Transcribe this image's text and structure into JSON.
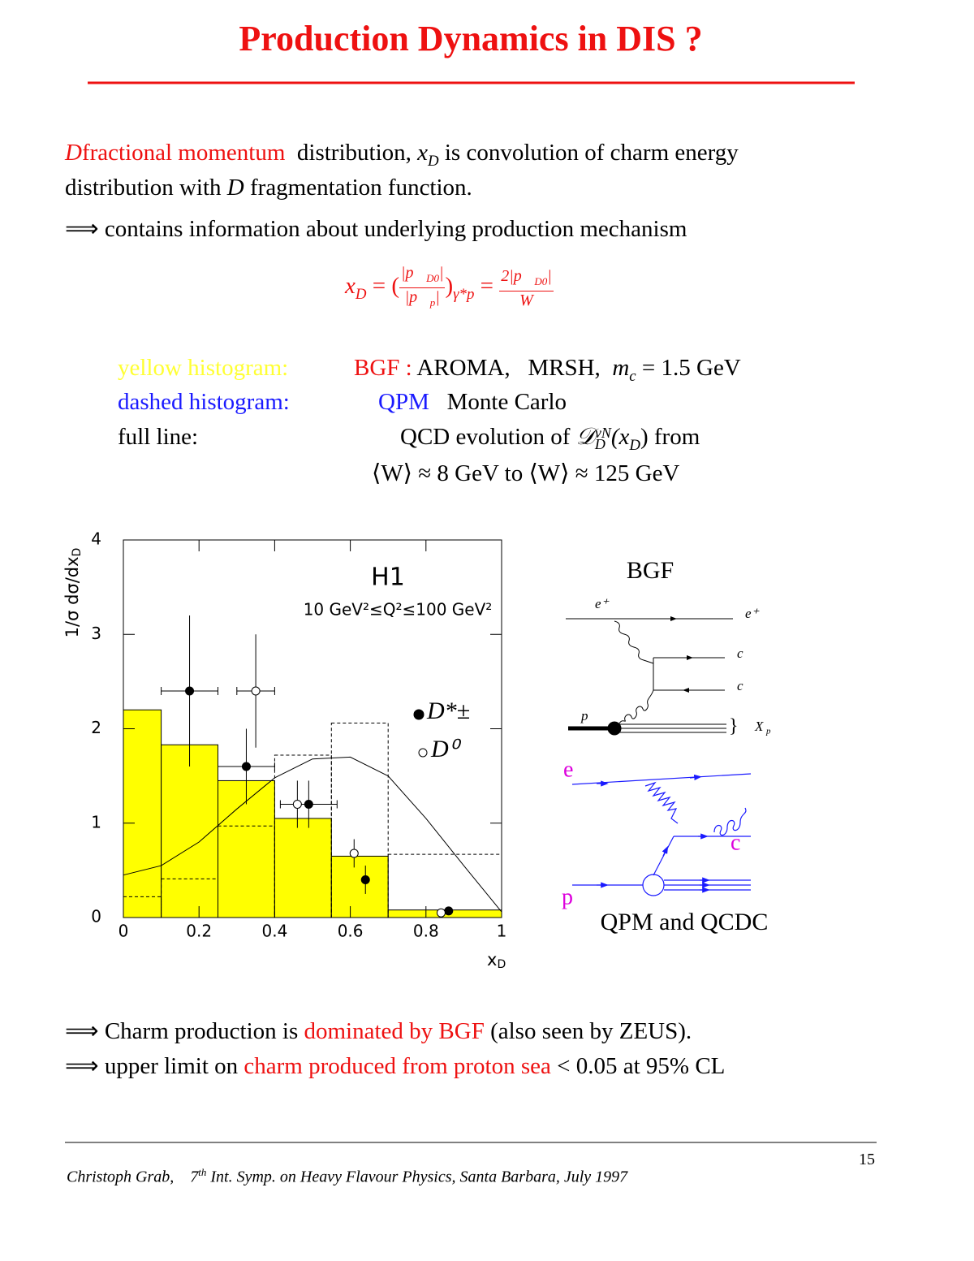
{
  "title": "Production Dynamics in DIS ?",
  "intro": [
    [
      "D",
      "fractional momentum",
      "distribution,",
      "x",
      "D",
      "is convolution of charm energy"
    ],
    [
      "distribution with",
      "D",
      "fragmentation function."
    ],
    [
      "⟹",
      "contains information about underlying production mechanism"
    ]
  ],
  "formula": [
    "x",
    "D",
    "= (",
    "|p⃗",
    "D0",
    "|",
    "|p⃗",
    "p",
    "|",
    ")",
    "γ*p",
    "=",
    "2|p⃗",
    "D0",
    "|",
    "W"
  ],
  "legend": [
    [
      "yellow histogram:",
      "BGF :",
      "AROMA,",
      "MRSH,",
      "m",
      "c",
      "= 1.5 GeV"
    ],
    [
      "dashed histogram:",
      "QPM",
      "Monte Carlo"
    ],
    [
      "full line:",
      "QCD evolution of",
      "𝒟",
      "νN",
      "D",
      "(x",
      "D",
      ") from"
    ],
    [
      "⟨W⟩ ≈ 8 GeV to ⟨W⟩ ≈ 125 GeV"
    ]
  ],
  "chart_data": {
    "type": "histogram",
    "ylabel": "1/σ dσ/dx",
    "ylabel_sub": "D",
    "xlabel": "x",
    "xlabel_sub": "D",
    "annotations": [
      "H1",
      "10 GeV²≤Q²≤100 GeV²"
    ],
    "xlim": [
      0,
      1
    ],
    "xticks": [
      0,
      0.2,
      0.4,
      0.6,
      0.8,
      1
    ],
    "ylim": [
      0,
      4
    ],
    "yticks": [
      0,
      1,
      2,
      3,
      4
    ],
    "bins": [
      0,
      0.1,
      0.25,
      0.4,
      0.55,
      0.7,
      1
    ],
    "series": [
      {
        "style": "filled",
        "color": "#ffff00",
        "values": [
          2.2,
          1.83,
          1.45,
          1.05,
          0.65,
          0.08
        ]
      },
      {
        "style": "dashed",
        "color": "#000000",
        "values": [
          0.22,
          0.41,
          0.97,
          1.72,
          2.06,
          0.67
        ]
      }
    ],
    "curve": {
      "x": [
        0,
        0.1,
        0.2,
        0.3,
        0.4,
        0.5,
        0.6,
        0.7,
        0.8,
        0.9,
        1
      ],
      "values": [
        0.45,
        0.55,
        0.8,
        1.15,
        1.48,
        1.68,
        1.7,
        1.5,
        1.05,
        0.55,
        0.06
      ]
    },
    "points": [
      {
        "name": "D*±",
        "marker": "filled",
        "x": [
          0.175,
          0.325,
          0.49,
          0.64,
          0.86
        ],
        "values": [
          2.4,
          1.6,
          1.2,
          0.4,
          0.07
        ],
        "yerr": [
          0.8,
          0.4,
          0.25,
          0.15,
          null
        ],
        "xerr": [
          0.075,
          0.075,
          0.075,
          null,
          null
        ]
      },
      {
        "name": "D⁰",
        "marker": "open",
        "x": [
          0.35,
          0.46,
          0.61,
          0.84
        ],
        "values": [
          2.4,
          1.2,
          0.68,
          0.05
        ],
        "yerr": [
          0.6,
          0.25,
          0.15,
          null
        ],
        "xerr": [
          0.05,
          null,
          null,
          null
        ]
      }
    ]
  },
  "diagrams": {
    "bgf": {
      "title": "BGF",
      "labels": [
        "e⁺",
        "e⁺",
        "c",
        "c",
        "p",
        "}",
        "X",
        "p"
      ]
    },
    "qpm": {
      "title": "QPM and QCDC",
      "labels": [
        "e",
        "c",
        "p"
      ]
    }
  },
  "conclusions": [
    [
      "⟹",
      "Charm production is",
      "dominated by BGF",
      "(also seen by ZEUS)."
    ],
    [
      "⟹",
      "upper limit on",
      "charm produced from proton sea",
      "< 0.05 at 95% CL"
    ]
  ],
  "footer": {
    "author": "Christoph Grab,",
    "number": "7",
    "suffix": "th",
    "event": "Int. Symp. on Heavy Flavour Physics, Santa Barbara, July 1997",
    "page": "15"
  }
}
